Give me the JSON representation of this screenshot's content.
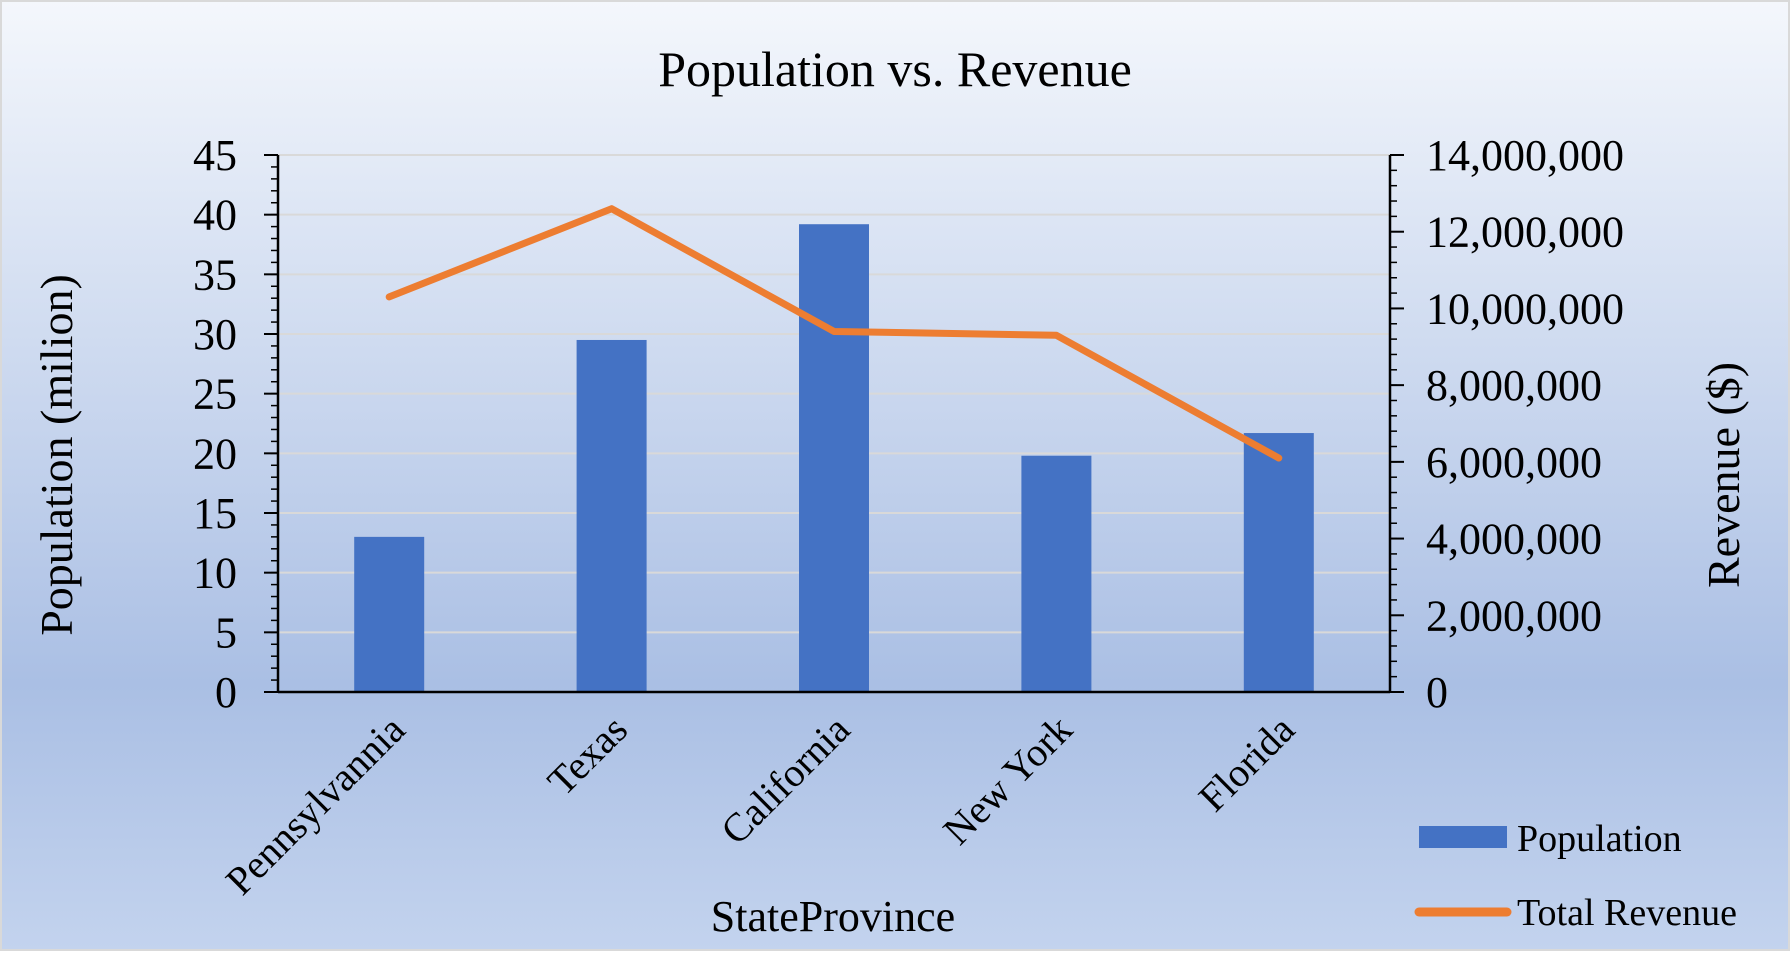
{
  "chart_data": {
    "type": "bar",
    "title": "Population vs. Revenue",
    "xlabel": "StateProvince",
    "ylabel": "Population (milion)",
    "y2label": "Revenue ($)",
    "categories": [
      "Pennsylvannia",
      "Texas",
      "California",
      "New York",
      "Florida"
    ],
    "series": [
      {
        "name": "Population",
        "type": "bar",
        "axis": "left",
        "color": "#4472C4",
        "values": [
          13,
          29.5,
          39.2,
          19.8,
          21.7
        ]
      },
      {
        "name": "Total Revenue",
        "type": "line",
        "axis": "right",
        "color": "#ED7D31",
        "values": [
          10300000,
          12600000,
          9400000,
          9300000,
          6100000
        ]
      }
    ],
    "ylim": [
      0,
      45
    ],
    "y_ticks": [
      "0",
      "5",
      "10",
      "15",
      "20",
      "25",
      "30",
      "35",
      "40",
      "45"
    ],
    "y2lim": [
      0,
      14000000
    ],
    "y2_ticks": [
      "0",
      "2,000,000",
      "4,000,000",
      "6,000,000",
      "8,000,000",
      "10,000,000",
      "12,000,000",
      "14,000,000"
    ],
    "grid": true,
    "legend_position": "bottom-right",
    "background_gradient": [
      "#f4f7fc",
      "#aabfe4",
      "#c3d3ee"
    ]
  }
}
